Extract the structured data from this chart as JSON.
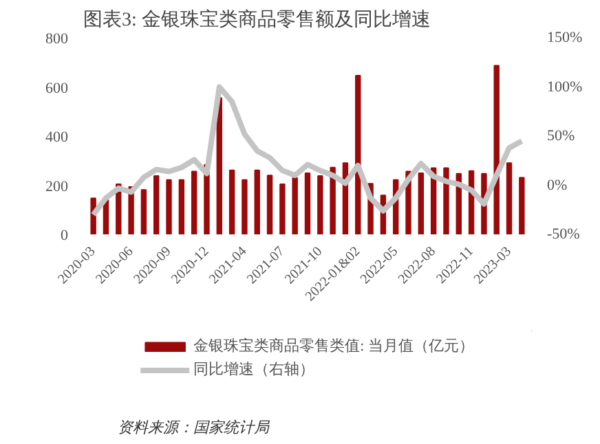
{
  "chart_data": {
    "type": "bar",
    "title": "图表3:  金银珠宝类商品零售额及同比增速",
    "categories": [
      "2020-03",
      null,
      null,
      "2020-06",
      null,
      null,
      "2020-09",
      null,
      null,
      "2020-12",
      null,
      null,
      "2021-04",
      null,
      null,
      "2021-07",
      null,
      null,
      "2021-10",
      null,
      null,
      "2022-01&02",
      null,
      null,
      "2022-05",
      null,
      null,
      "2022-08",
      null,
      null,
      "2022-11",
      null,
      null,
      "2023-03",
      null
    ],
    "series": [
      {
        "name": "金银珠宝类商品零售类值: 当月值（亿元）",
        "color": "#9b0a0a",
        "values": [
          147,
          140,
          204,
          193,
          181,
          238,
          222,
          222,
          256,
          283,
          555,
          261,
          222,
          261,
          240,
          204,
          230,
          249,
          238,
          272,
          290,
          646,
          206,
          159,
          222,
          256,
          249,
          270,
          270,
          247,
          258,
          247,
          687,
          290,
          231
        ]
      },
      {
        "name": "同比增速（右轴）",
        "type": "line",
        "axis": "y2",
        "color": "#c4c4c4",
        "values": [
          -30,
          -13,
          -3,
          -7,
          8,
          16,
          14,
          18,
          26,
          12,
          100,
          85,
          52,
          35,
          28,
          15,
          10,
          21,
          15,
          10,
          2,
          20,
          -13,
          -26,
          -13,
          6,
          22,
          9,
          4,
          1,
          -5,
          -19,
          10,
          38,
          45
        ]
      }
    ],
    "ylim": [
      0,
      800
    ],
    "yticks": [
      0,
      200,
      400,
      600,
      800
    ],
    "y2lim": [
      -50,
      150
    ],
    "y2ticks": [
      {
        "value": -50,
        "label": "-50%"
      },
      {
        "value": 0,
        "label": "0%"
      },
      {
        "value": 50,
        "label": "50%"
      },
      {
        "value": 100,
        "label": "100%"
      },
      {
        "value": 150,
        "label": "150%"
      }
    ],
    "grid": false,
    "legend": "bottom",
    "line_style": "solid",
    "marker": "none",
    "annotations": [
      "资料来源：国家统计局"
    ]
  }
}
